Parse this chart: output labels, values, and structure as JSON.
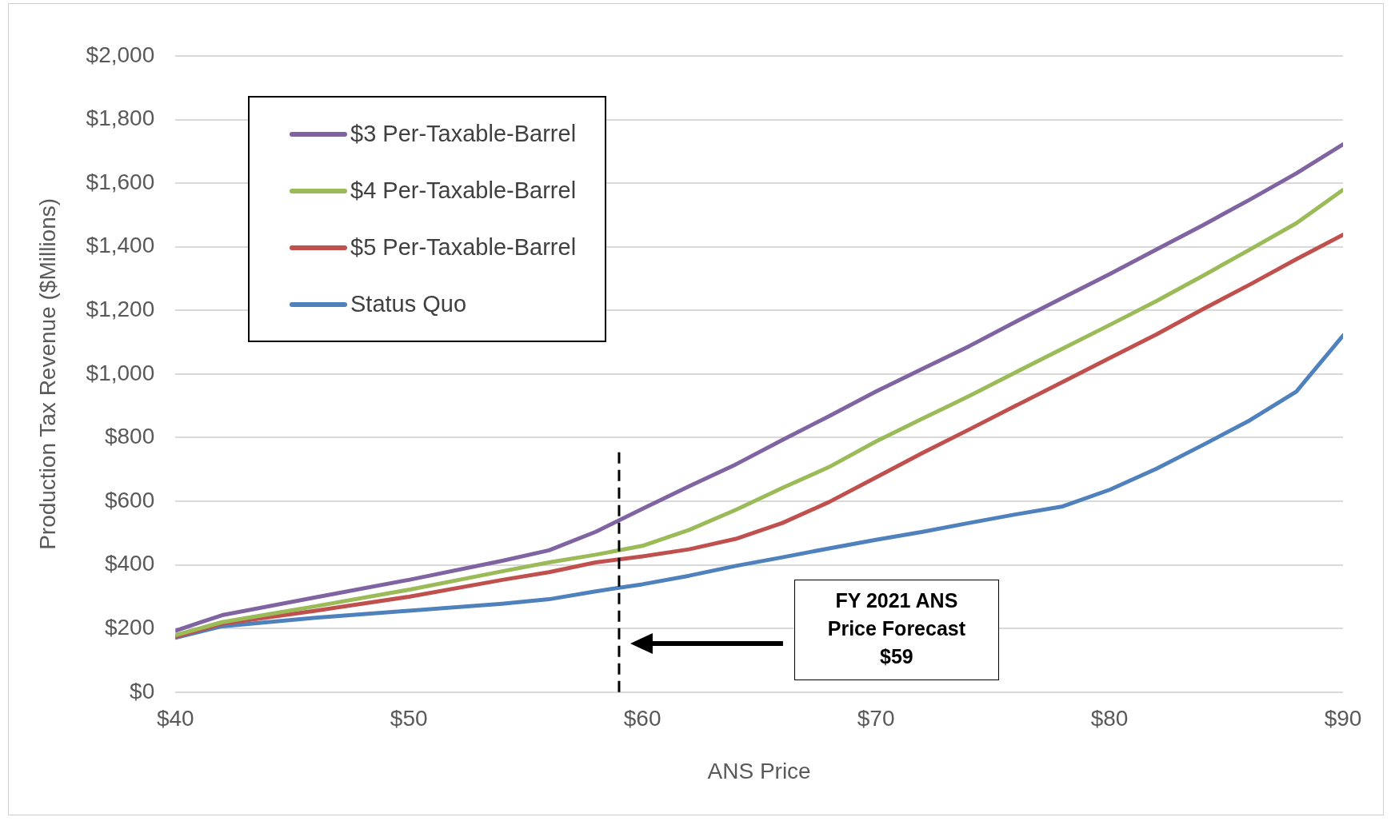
{
  "chart_data": {
    "type": "line",
    "xlabel": "ANS Price",
    "ylabel": "Production Tax Revenue ($Millions)",
    "x": [
      40,
      42,
      46,
      50,
      54,
      56,
      58,
      60,
      62,
      64,
      66,
      68,
      70,
      72,
      74,
      76,
      78,
      80,
      82,
      84,
      86,
      88,
      90
    ],
    "series": [
      {
        "name": "$3 Per-Taxable-Barrel",
        "color": "#8064a2",
        "values": [
          193,
          242,
          298,
          353,
          413,
          446,
          504,
          576,
          647,
          716,
          793,
          868,
          945,
          1017,
          1088,
          1165,
          1240,
          1314,
          1391,
          1468,
          1548,
          1631,
          1722
        ]
      },
      {
        "name": "$4 Per-Taxable-Barrel",
        "color": "#9bbb59",
        "values": [
          179,
          220,
          270,
          322,
          380,
          408,
          432,
          460,
          510,
          573,
          642,
          708,
          788,
          860,
          931,
          1006,
          1080,
          1154,
          1229,
          1309,
          1391,
          1474,
          1579
        ]
      },
      {
        "name": "$5 Per-Taxable-Barrel",
        "color": "#c0504d",
        "values": [
          174,
          215,
          256,
          300,
          353,
          377,
          408,
          427,
          449,
          482,
          532,
          598,
          675,
          752,
          826,
          901,
          975,
          1050,
          1124,
          1204,
          1281,
          1361,
          1438
        ]
      },
      {
        "name": "Status Quo",
        "color": "#4f81bd",
        "values": [
          171,
          207,
          234,
          256,
          278,
          292,
          317,
          339,
          366,
          397,
          424,
          452,
          479,
          504,
          532,
          559,
          584,
          636,
          702,
          777,
          854,
          945,
          1121
        ]
      }
    ],
    "xlim": [
      40,
      90
    ],
    "xticks": [
      {
        "value": 40,
        "label": "$40"
      },
      {
        "value": 50,
        "label": "$50"
      },
      {
        "value": 60,
        "label": "$60"
      },
      {
        "value": 70,
        "label": "$70"
      },
      {
        "value": 80,
        "label": "$80"
      },
      {
        "value": 90,
        "label": "$90"
      }
    ],
    "ylim": [
      0,
      2000
    ],
    "yticks": [
      {
        "value": 0,
        "label": "$0"
      },
      {
        "value": 200,
        "label": "$200"
      },
      {
        "value": 400,
        "label": "$400"
      },
      {
        "value": 600,
        "label": "$600"
      },
      {
        "value": 800,
        "label": "$800"
      },
      {
        "value": 1000,
        "label": "$1,000"
      },
      {
        "value": 1200,
        "label": "$1,200"
      },
      {
        "value": 1400,
        "label": "$1,400"
      },
      {
        "value": 1600,
        "label": "$1,600"
      },
      {
        "value": 1800,
        "label": "$1,800"
      },
      {
        "value": 2000,
        "label": "$2,000"
      }
    ],
    "ref_lines": [
      {
        "axis": "x",
        "value": 59,
        "color": "#000000",
        "line_style": "dashed"
      }
    ],
    "annotations": [
      "FY 2021 ANS\nPrice Forecast\n$59"
    ],
    "grid": "y",
    "legend": "top left",
    "marker": "none",
    "line_style": "solid"
  }
}
